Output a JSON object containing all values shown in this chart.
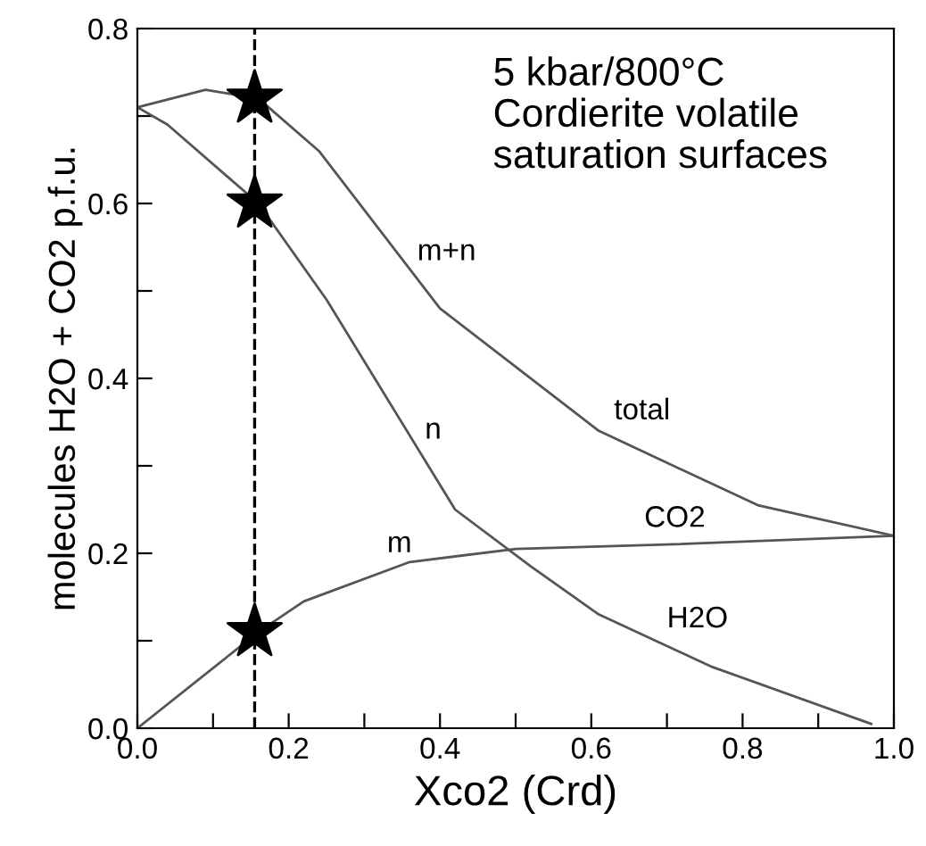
{
  "chart_data": {
    "type": "line",
    "xlabel": "Xco2 (Crd)",
    "ylabel": "molecules H2O + CO2 p.f.u.",
    "series": [
      {
        "color": "#555555",
        "x": [
          0,
          0.09,
          0.16,
          0.24,
          0.4,
          0.61,
          0.82,
          1.0
        ],
        "values": [
          0.71,
          0.73,
          0.72,
          0.66,
          0.48,
          0.34,
          0.255,
          0.22
        ]
      },
      {
        "color": "#555555",
        "x": [
          0,
          0.04,
          0.12,
          0.16,
          0.25,
          0.42,
          0.52,
          0.61,
          0.76,
          0.97
        ],
        "values": [
          0.71,
          0.69,
          0.63,
          0.6,
          0.49,
          0.25,
          0.185,
          0.13,
          0.07,
          0.005
        ]
      },
      {
        "color": "#555555",
        "x": [
          0,
          0.16,
          0.22,
          0.36,
          0.5,
          0.7,
          1.0
        ],
        "values": [
          0,
          0.11,
          0.145,
          0.19,
          0.205,
          0.21,
          0.22
        ]
      },
      {
        "type": "scatter",
        "marker": "star",
        "color": "#000000",
        "x": [
          0.155,
          0.155,
          0.155
        ],
        "values": [
          0.72,
          0.6,
          0.11
        ]
      }
    ],
    "ref_lines": [
      {
        "axis": "x",
        "value": 0.155,
        "color": "#000000",
        "line_style": "dashed"
      }
    ],
    "xlim": [
      0,
      1.0
    ],
    "ylim": [
      0,
      0.8
    ],
    "xticks": [
      {
        "value": 0,
        "label": "0.0"
      },
      {
        "value": 0.1,
        "label": null
      },
      0.2,
      {
        "value": 0.3,
        "label": null
      },
      0.4,
      {
        "value": 0.5,
        "label": null
      },
      0.6,
      {
        "value": 0.7,
        "label": null
      },
      0.8,
      {
        "value": 0.9,
        "label": null
      },
      {
        "value": 1.0,
        "label": "1.0"
      }
    ],
    "yticks": [
      {
        "value": 0,
        "label": "0.0"
      },
      {
        "value": 0.1,
        "label": null
      },
      0.2,
      {
        "value": 0.3,
        "label": null
      },
      0.4,
      {
        "value": 0.5,
        "label": null
      },
      0.6,
      {
        "value": 0.7,
        "label": null
      },
      0.8
    ],
    "grid": false,
    "legend": false,
    "annotations": [
      "5 kbar/800°C\nCordierite volatile\nsaturation surfaces",
      {
        "text": "m+n",
        "x": 0.37,
        "y": 0.514
      },
      {
        "text": "n",
        "x": 0.38,
        "y": 0.31
      },
      {
        "text": "m",
        "x": 0.33,
        "y": 0.18
      },
      {
        "text": "total",
        "x": 0.63,
        "y": 0.332
      },
      {
        "text": "CO2",
        "x": 0.67,
        "y": 0.209
      },
      {
        "text": "H2O",
        "x": 0.7,
        "y": 0.094
      }
    ]
  }
}
